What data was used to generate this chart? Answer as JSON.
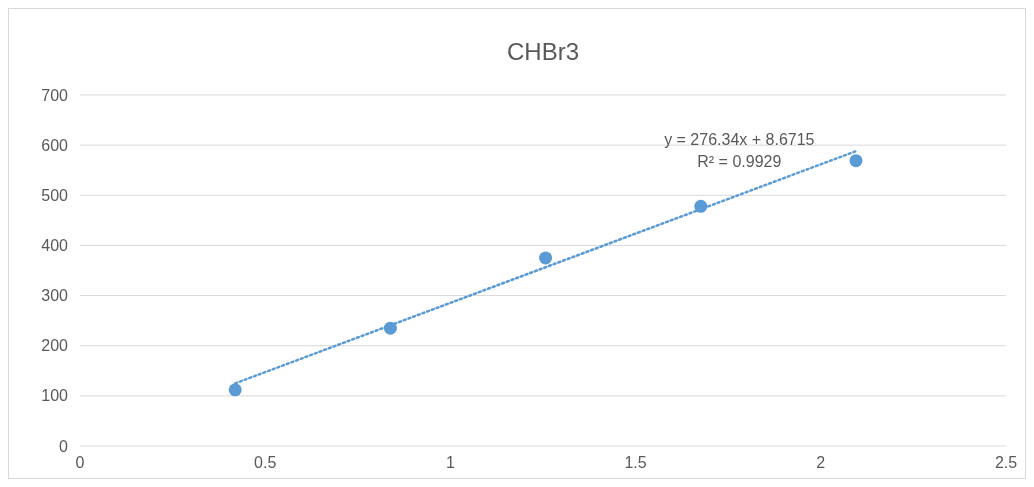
{
  "chart_data": {
    "type": "scatter",
    "title": "CHBr3",
    "series": [
      {
        "type": "scatter",
        "color": "#5b9bd5",
        "x": [
          0.419,
          0.838,
          1.257,
          1.676,
          2.095
        ],
        "values": [
          112,
          235,
          375,
          478,
          569
        ],
        "marker": "circle"
      },
      {
        "type": "line",
        "color": "#5b9bd5",
        "x": [
          0.419,
          2.095
        ],
        "values": [
          125,
          588
        ],
        "line_style": "dotted"
      }
    ],
    "annotations": [
      "y = 276.34x + 8.6715",
      "R² = 0.9929"
    ],
    "xlim": [
      0,
      2.5
    ],
    "xticks": [
      0,
      0.5,
      1,
      1.5,
      2,
      2.5
    ],
    "ylim": [
      0,
      700
    ],
    "yticks": [
      0,
      100,
      200,
      300,
      400,
      500,
      600,
      700
    ],
    "grid": "y"
  }
}
